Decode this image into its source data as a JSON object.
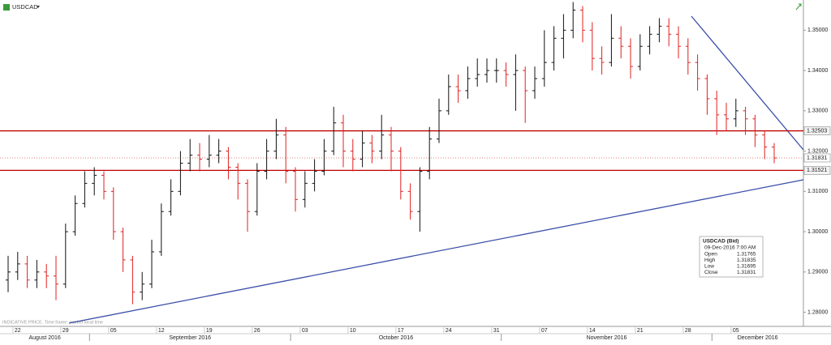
{
  "header": {
    "symbol": "USDCAD"
  },
  "footer": {
    "note": "INDICATIVE PRICE.  Time frame: market local time"
  },
  "chart_data": {
    "type": "ohlc",
    "up_color": "#111111",
    "down_color": "#e02020",
    "x": [
      "2016-08-19",
      "2016-08-22",
      "2016-08-23",
      "2016-08-24",
      "2016-08-25",
      "2016-08-26",
      "2016-08-29",
      "2016-08-30",
      "2016-08-31",
      "2016-09-01",
      "2016-09-02",
      "2016-09-05",
      "2016-09-06",
      "2016-09-07",
      "2016-09-08",
      "2016-09-09",
      "2016-09-12",
      "2016-09-13",
      "2016-09-14",
      "2016-09-15",
      "2016-09-16",
      "2016-09-19",
      "2016-09-20",
      "2016-09-21",
      "2016-09-22",
      "2016-09-23",
      "2016-09-26",
      "2016-09-27",
      "2016-09-28",
      "2016-09-29",
      "2016-09-30",
      "2016-10-03",
      "2016-10-04",
      "2016-10-05",
      "2016-10-06",
      "2016-10-07",
      "2016-10-10",
      "2016-10-11",
      "2016-10-12",
      "2016-10-13",
      "2016-10-14",
      "2016-10-17",
      "2016-10-18",
      "2016-10-19",
      "2016-10-20",
      "2016-10-21",
      "2016-10-24",
      "2016-10-25",
      "2016-10-26",
      "2016-10-27",
      "2016-10-28",
      "2016-10-31",
      "2016-11-01",
      "2016-11-02",
      "2016-11-03",
      "2016-11-04",
      "2016-11-07",
      "2016-11-08",
      "2016-11-09",
      "2016-11-10",
      "2016-11-11",
      "2016-11-14",
      "2016-11-15",
      "2016-11-16",
      "2016-11-17",
      "2016-11-18",
      "2016-11-21",
      "2016-11-22",
      "2016-11-23",
      "2016-11-24",
      "2016-11-25",
      "2016-11-28",
      "2016-11-29",
      "2016-11-30",
      "2016-12-01",
      "2016-12-02",
      "2016-12-05",
      "2016-12-06",
      "2016-12-07",
      "2016-12-08",
      "2016-12-09"
    ],
    "open": [
      1.288,
      1.29,
      1.292,
      1.288,
      1.29,
      1.289,
      1.287,
      1.3,
      1.307,
      1.312,
      1.314,
      1.31,
      1.3,
      1.293,
      1.285,
      1.287,
      1.295,
      1.305,
      1.31,
      1.317,
      1.319,
      1.318,
      1.319,
      1.32,
      1.316,
      1.312,
      1.305,
      1.315,
      1.32,
      1.324,
      1.315,
      1.308,
      1.312,
      1.315,
      1.32,
      1.327,
      1.32,
      1.318,
      1.322,
      1.32,
      1.324,
      1.32,
      1.31,
      1.305,
      1.315,
      1.323,
      1.33,
      1.336,
      1.335,
      1.338,
      1.339,
      1.34,
      1.34,
      1.339,
      1.34,
      1.335,
      1.338,
      1.342,
      1.348,
      1.35,
      1.355,
      1.35,
      1.343,
      1.342,
      1.348,
      1.346,
      1.341,
      1.346,
      1.349,
      1.351,
      1.349,
      1.346,
      1.342,
      1.338,
      1.333,
      1.329,
      1.328,
      1.33,
      1.328,
      1.324,
      1.321
    ],
    "high": [
      1.294,
      1.295,
      1.294,
      1.293,
      1.292,
      1.294,
      1.302,
      1.309,
      1.315,
      1.316,
      1.315,
      1.311,
      1.301,
      1.294,
      1.29,
      1.298,
      1.307,
      1.313,
      1.32,
      1.323,
      1.322,
      1.324,
      1.323,
      1.321,
      1.317,
      1.313,
      1.317,
      1.323,
      1.328,
      1.326,
      1.316,
      1.315,
      1.318,
      1.323,
      1.331,
      1.329,
      1.323,
      1.325,
      1.324,
      1.329,
      1.326,
      1.321,
      1.312,
      1.316,
      1.326,
      1.333,
      1.339,
      1.339,
      1.341,
      1.343,
      1.343,
      1.343,
      1.342,
      1.344,
      1.341,
      1.341,
      1.35,
      1.351,
      1.354,
      1.357,
      1.356,
      1.352,
      1.346,
      1.354,
      1.351,
      1.348,
      1.349,
      1.351,
      1.353,
      1.353,
      1.351,
      1.348,
      1.344,
      1.339,
      1.335,
      1.332,
      1.333,
      1.331,
      1.329,
      1.325,
      1.322
    ],
    "low": [
      1.285,
      1.288,
      1.286,
      1.286,
      1.286,
      1.283,
      1.286,
      1.299,
      1.306,
      1.309,
      1.308,
      1.298,
      1.29,
      1.282,
      1.283,
      1.286,
      1.294,
      1.304,
      1.309,
      1.315,
      1.315,
      1.316,
      1.317,
      1.313,
      1.308,
      1.3,
      1.304,
      1.313,
      1.318,
      1.312,
      1.305,
      1.306,
      1.31,
      1.314,
      1.319,
      1.316,
      1.315,
      1.316,
      1.317,
      1.318,
      1.315,
      1.308,
      1.303,
      1.3,
      1.313,
      1.322,
      1.329,
      1.332,
      1.333,
      1.336,
      1.337,
      1.337,
      1.336,
      1.33,
      1.327,
      1.333,
      1.336,
      1.34,
      1.343,
      1.348,
      1.347,
      1.34,
      1.339,
      1.341,
      1.343,
      1.338,
      1.34,
      1.344,
      1.347,
      1.346,
      1.343,
      1.339,
      1.335,
      1.329,
      1.324,
      1.325,
      1.326,
      1.324,
      1.321,
      1.318,
      1.317
    ],
    "close": [
      1.29,
      1.292,
      1.288,
      1.29,
      1.289,
      1.287,
      1.3,
      1.307,
      1.312,
      1.314,
      1.31,
      1.3,
      1.293,
      1.285,
      1.287,
      1.295,
      1.305,
      1.31,
      1.317,
      1.319,
      1.318,
      1.319,
      1.32,
      1.316,
      1.312,
      1.305,
      1.315,
      1.32,
      1.324,
      1.315,
      1.308,
      1.312,
      1.315,
      1.32,
      1.327,
      1.32,
      1.318,
      1.322,
      1.32,
      1.324,
      1.32,
      1.31,
      1.305,
      1.315,
      1.323,
      1.33,
      1.336,
      1.335,
      1.338,
      1.339,
      1.34,
      1.34,
      1.339,
      1.34,
      1.335,
      1.338,
      1.342,
      1.348,
      1.35,
      1.355,
      1.35,
      1.343,
      1.342,
      1.348,
      1.346,
      1.341,
      1.346,
      1.349,
      1.351,
      1.349,
      1.346,
      1.342,
      1.338,
      1.333,
      1.329,
      1.328,
      1.33,
      1.328,
      1.324,
      1.321,
      1.3183
    ],
    "ylim": [
      1.2765,
      1.3575
    ],
    "yticks": [
      {
        "value": 1.28,
        "label": "1.28000"
      },
      {
        "value": 1.29,
        "label": "1.29000"
      },
      {
        "value": 1.3,
        "label": "1.30000"
      },
      {
        "value": 1.31,
        "label": "1.31000"
      },
      {
        "value": 1.32,
        "label": "1.32000"
      },
      {
        "value": 1.33,
        "label": "1.33000"
      },
      {
        "value": 1.34,
        "label": "1.34000"
      },
      {
        "value": 1.35,
        "label": "1.35000"
      }
    ],
    "xticks": [
      {
        "value": "2016-08-22",
        "label": "22"
      },
      {
        "value": "2016-08-29",
        "label": "29"
      },
      {
        "value": "2016-09-05",
        "label": "05"
      },
      {
        "value": "2016-09-12",
        "label": "12"
      },
      {
        "value": "2016-09-19",
        "label": "19"
      },
      {
        "value": "2016-09-26",
        "label": "26"
      },
      {
        "value": "2016-10-03",
        "label": "03"
      },
      {
        "value": "2016-10-10",
        "label": "10"
      },
      {
        "value": "2016-10-17",
        "label": "17"
      },
      {
        "value": "2016-10-24",
        "label": "24"
      },
      {
        "value": "2016-10-31",
        "label": "31"
      },
      {
        "value": "2016-11-07",
        "label": "07"
      },
      {
        "value": "2016-11-14",
        "label": "14"
      },
      {
        "value": "2016-11-21",
        "label": "21"
      },
      {
        "value": "2016-11-28",
        "label": "28"
      },
      {
        "value": "2016-12-05",
        "label": "05"
      }
    ],
    "months": [
      {
        "value": "2016-08-01",
        "label": "August 2016"
      },
      {
        "value": "2016-09-01",
        "label": "September 2016"
      },
      {
        "value": "2016-10-01",
        "label": "October 2016"
      },
      {
        "value": "2016-11-01",
        "label": "November 2016"
      },
      {
        "value": "2016-12-01",
        "label": "December 2016"
      }
    ],
    "levels": [
      {
        "value": 1.32503,
        "label": "1.32503",
        "color": "#c00000"
      },
      {
        "value": 1.31521,
        "label": "1.31521",
        "color": "#c00000"
      }
    ],
    "last_price": {
      "value": 1.31831,
      "label": "1.31831"
    },
    "tooltip": {
      "title": "USDCAD (Bid)",
      "time": "09-Dec-2016 7:00 AM",
      "rows": [
        [
          "Open",
          "1.31765"
        ],
        [
          "High",
          "1.31835"
        ],
        [
          "Low",
          "1.31695"
        ],
        [
          "Close",
          "1.31831"
        ]
      ]
    }
  }
}
